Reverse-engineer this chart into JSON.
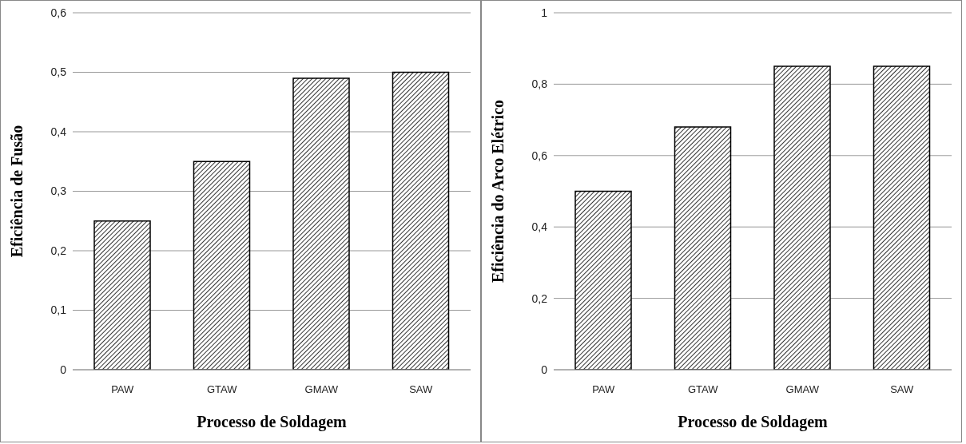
{
  "chart_data": [
    {
      "type": "bar",
      "xlabel": "Processo de Soldagem",
      "ylabel": "Eficiência de Fusão",
      "categories": [
        "PAW",
        "GTAW",
        "GMAW",
        "SAW"
      ],
      "series": [
        {
          "color": "#000000",
          "values": [
            0.25,
            0.35,
            0.49,
            0.5
          ]
        }
      ],
      "ylim": [
        0,
        0.6
      ],
      "yticks": [
        {
          "value": 0,
          "label": "0"
        },
        {
          "value": 0.1,
          "label": "0,1"
        },
        {
          "value": 0.2,
          "label": "0,2"
        },
        {
          "value": 0.3,
          "label": "0,3"
        },
        {
          "value": 0.4,
          "label": "0,4"
        },
        {
          "value": 0.5,
          "label": "0,5"
        },
        {
          "value": 0.6,
          "label": "0,6"
        }
      ],
      "grid": "y"
    },
    {
      "type": "bar",
      "xlabel": "Processo de Soldagem",
      "ylabel": "Eficiência do Arco Elétrico",
      "categories": [
        "PAW",
        "GTAW",
        "GMAW",
        "SAW"
      ],
      "series": [
        {
          "color": "#000000",
          "values": [
            0.5,
            0.68,
            0.85,
            0.85
          ]
        }
      ],
      "ylim": [
        0,
        1
      ],
      "yticks": [
        {
          "value": 0,
          "label": "0"
        },
        {
          "value": 0.2,
          "label": "0,2"
        },
        {
          "value": 0.4,
          "label": "0,4"
        },
        {
          "value": 0.6,
          "label": "0,6"
        },
        {
          "value": 0.8,
          "label": "0,8"
        },
        {
          "value": 1,
          "label": "1"
        }
      ],
      "grid": "y"
    }
  ]
}
